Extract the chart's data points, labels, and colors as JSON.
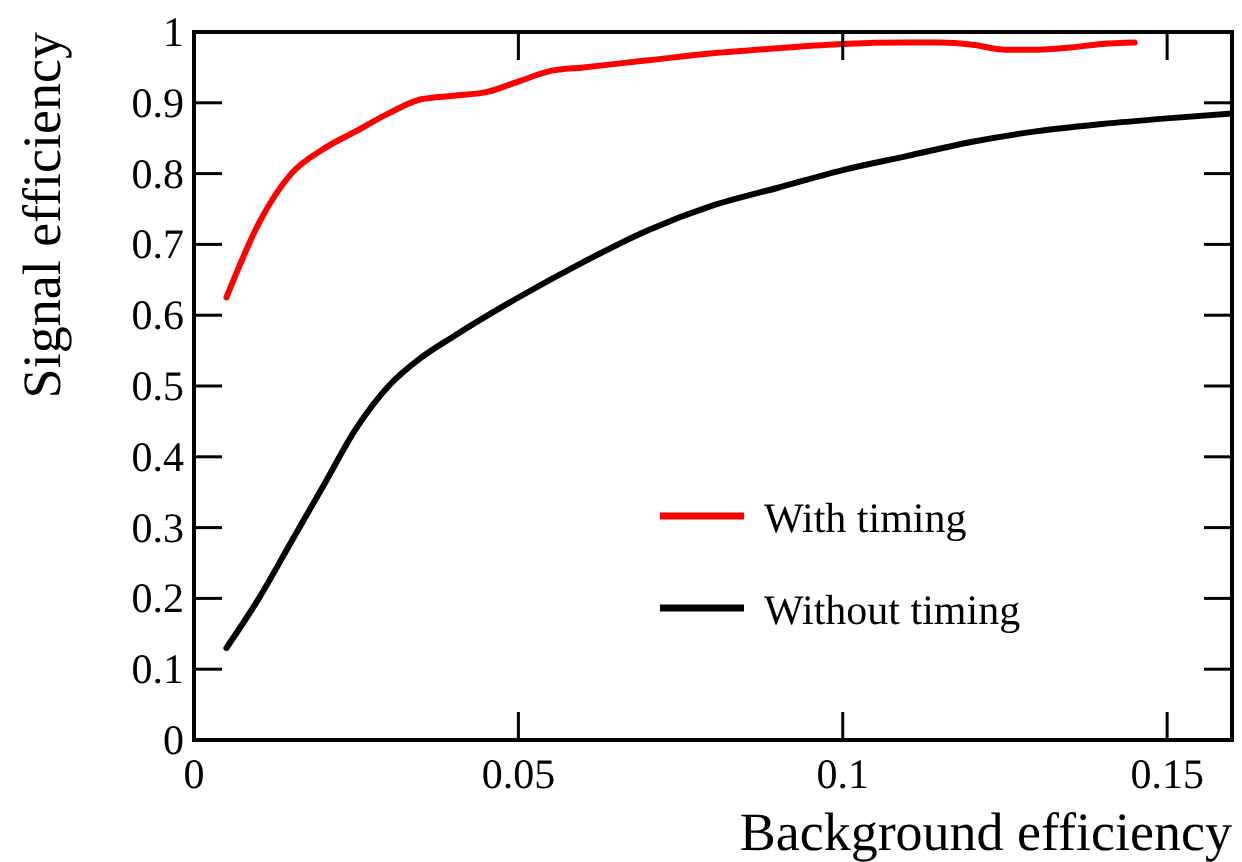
{
  "chart_data": {
    "type": "line",
    "xlabel": "Background efficiency",
    "ylabel": "Signal efficiency",
    "xlim": [
      0,
      0.16
    ],
    "ylim": [
      0,
      1
    ],
    "xticks": [
      0,
      0.05,
      0.1,
      0.15
    ],
    "yticks": [
      0,
      0.1,
      0.2,
      0.3,
      0.4,
      0.5,
      0.6,
      0.7,
      0.8,
      0.9,
      1
    ],
    "grid": false,
    "legend": "bottom right",
    "marker": "none",
    "line_style": "solid",
    "series": [
      {
        "name": "With timing",
        "color": "#ff0000",
        "x": [
          0.005,
          0.01,
          0.015,
          0.02,
          0.025,
          0.03,
          0.035,
          0.04,
          0.045,
          0.05,
          0.055,
          0.06,
          0.07,
          0.08,
          0.09,
          0.1,
          0.11,
          0.115,
          0.12,
          0.125,
          0.13,
          0.135,
          0.14,
          0.145
        ],
        "values": [
          0.625,
          0.73,
          0.8,
          0.835,
          0.86,
          0.885,
          0.905,
          0.91,
          0.915,
          0.93,
          0.945,
          0.95,
          0.96,
          0.97,
          0.977,
          0.983,
          0.985,
          0.985,
          0.982,
          0.975,
          0.975,
          0.978,
          0.983,
          0.985
        ]
      },
      {
        "name": "Without timing",
        "color": "#000000",
        "x": [
          0.005,
          0.01,
          0.015,
          0.02,
          0.025,
          0.03,
          0.035,
          0.04,
          0.05,
          0.06,
          0.07,
          0.08,
          0.09,
          0.1,
          0.11,
          0.12,
          0.13,
          0.14,
          0.15,
          0.16
        ],
        "values": [
          0.13,
          0.2,
          0.28,
          0.36,
          0.44,
          0.5,
          0.54,
          0.57,
          0.625,
          0.675,
          0.72,
          0.755,
          0.78,
          0.805,
          0.825,
          0.845,
          0.86,
          0.87,
          0.878,
          0.885
        ]
      }
    ]
  }
}
